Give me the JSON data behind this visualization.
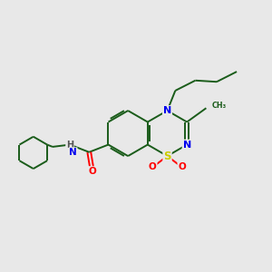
{
  "bg_color": "#e8e8e8",
  "bond_color": "#1a5c1a",
  "N_color": "#0000ee",
  "S_color": "#cccc00",
  "O_color": "#ff0000",
  "H_color": "#555555",
  "text_color": "#000000",
  "figsize": [
    3.0,
    3.0
  ],
  "dpi": 100,
  "xlim": [
    0,
    10
  ],
  "ylim": [
    0,
    10
  ],
  "bx": 4.7,
  "by": 5.1,
  "r": 0.85,
  "dr": 0.85
}
